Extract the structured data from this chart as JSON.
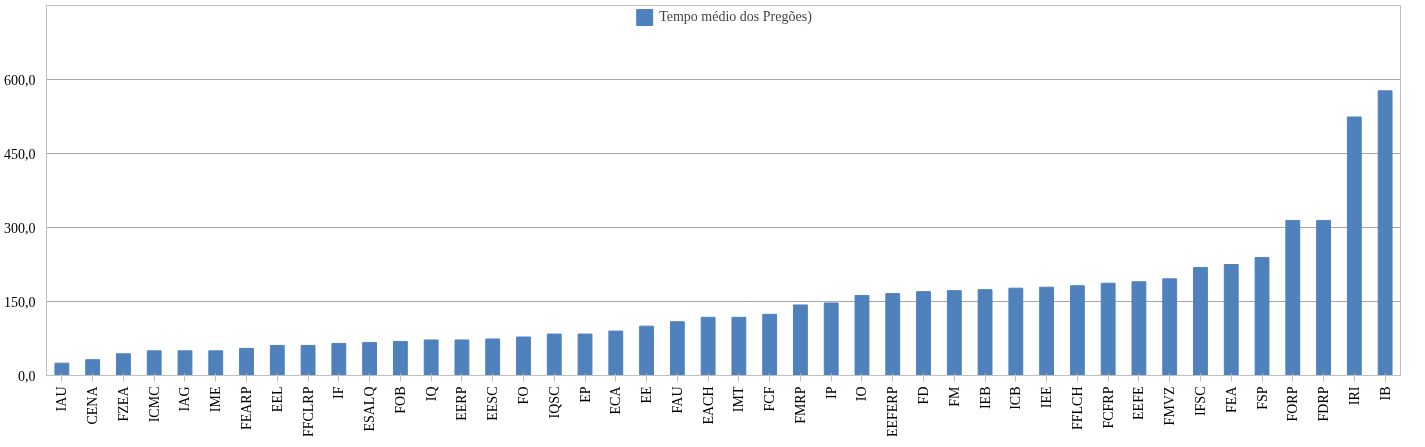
{
  "chart_data": {
    "type": "bar",
    "categories": [
      "IAU",
      "CENA",
      "FZEA",
      "ICMC",
      "IAG",
      "IME",
      "FEARP",
      "EEL",
      "FFCLRP",
      "IF",
      "ESALQ",
      "FOB",
      "IQ",
      "EERP",
      "EESC",
      "FO",
      "IQSC",
      "EP",
      "ECA",
      "EE",
      "FAU",
      "EACH",
      "IMT",
      "FCF",
      "FMRP",
      "IP",
      "IO",
      "EEFERP",
      "FD",
      "FM",
      "IEB",
      "ICB",
      "IEE",
      "FFLCH",
      "FCFRP",
      "EEFE",
      "FMVZ",
      "IFSC",
      "FEA",
      "FSP",
      "FORP",
      "FDRP",
      "IRI",
      "IB"
    ],
    "series": [
      {
        "name": "Tempo médio dos Pregões)",
        "color": "#4f81bd",
        "values": [
          25,
          32,
          44,
          50,
          50,
          50,
          55,
          61,
          61,
          65,
          67,
          69,
          72,
          72,
          74,
          78,
          84,
          84,
          90,
          100,
          109,
          118,
          118,
          124,
          143,
          147,
          162,
          166,
          170,
          172,
          174,
          177,
          179,
          182,
          187,
          190,
          196,
          219,
          225,
          239,
          314,
          314,
          524,
          577
        ]
      }
    ],
    "ylim": [
      0,
      750
    ],
    "yticks": [
      {
        "value": 0,
        "label": "0,0"
      },
      {
        "value": 150,
        "label": "150,0"
      },
      {
        "value": 300,
        "label": "300,0"
      },
      {
        "value": 450,
        "label": "450,0"
      },
      {
        "value": 600,
        "label": "600,0"
      }
    ],
    "grid": "y",
    "legend": "top"
  }
}
